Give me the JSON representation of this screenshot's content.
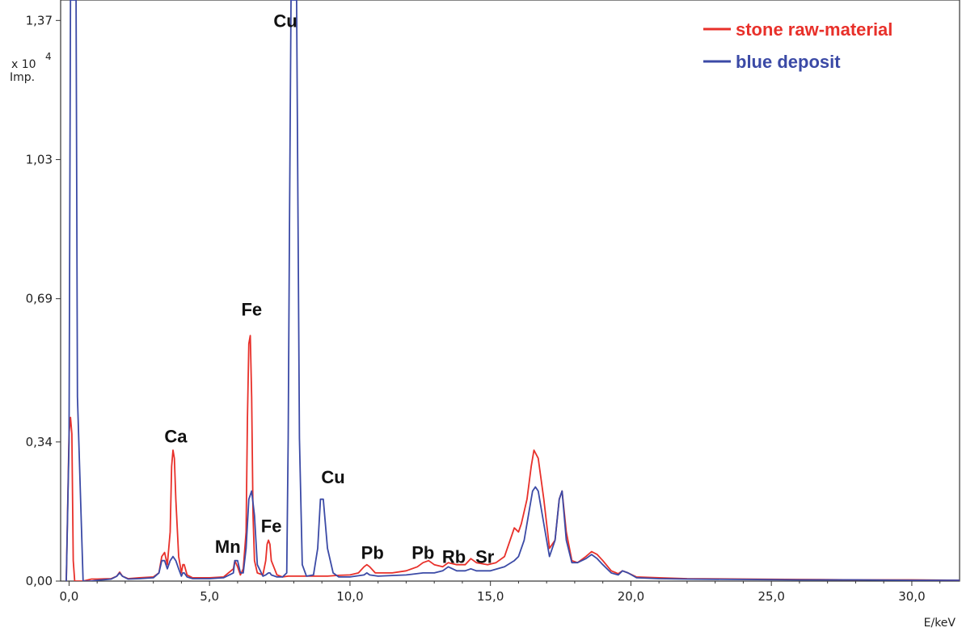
{
  "chart_data": {
    "type": "line",
    "title": "",
    "xlabel": "E/keV",
    "ylabel_multiplier": "x 10",
    "ylabel_exponent": "4",
    "ylabel_unit": "Imp.",
    "xlim": [
      -0.3,
      31.7
    ],
    "ylim": [
      0.0,
      1.42
    ],
    "x_ticks": [
      0,
      5,
      10,
      15,
      20,
      25,
      30
    ],
    "x_tick_labels": [
      "0,0",
      "5,0",
      "10,0",
      "15,0",
      "20,0",
      "25,0",
      "30,0"
    ],
    "y_ticks": [
      0.0,
      0.34,
      0.69,
      1.03,
      1.37
    ],
    "y_tick_labels": [
      "0,00",
      "0,34",
      "0,69",
      "1,03",
      "1,37"
    ],
    "grid": false,
    "legend_position": "top-right",
    "series": [
      {
        "name": "stone raw-material",
        "color": "#e8302a",
        "x": [
          -0.1,
          0.0,
          0.05,
          0.1,
          0.15,
          0.2,
          0.3,
          0.5,
          0.8,
          1.0,
          1.5,
          1.7,
          1.8,
          1.9,
          2.1,
          2.5,
          3.0,
          3.2,
          3.3,
          3.4,
          3.5,
          3.6,
          3.65,
          3.7,
          3.75,
          3.8,
          3.9,
          4.0,
          4.05,
          4.1,
          4.2,
          4.4,
          5.0,
          5.5,
          5.85,
          5.9,
          6.0,
          6.1,
          6.2,
          6.3,
          6.35,
          6.4,
          6.45,
          6.5,
          6.55,
          6.6,
          6.7,
          6.9,
          7.0,
          7.05,
          7.1,
          7.15,
          7.2,
          7.4,
          7.6,
          7.8,
          8.0,
          8.1,
          8.3,
          8.6,
          8.9,
          9.2,
          9.6,
          10.0,
          10.3,
          10.5,
          10.6,
          10.7,
          10.9,
          11.5,
          12.0,
          12.4,
          12.6,
          12.8,
          13.0,
          13.3,
          13.5,
          13.8,
          14.1,
          14.3,
          14.5,
          14.9,
          15.2,
          15.5,
          15.7,
          15.85,
          16.0,
          16.1,
          16.3,
          16.45,
          16.55,
          16.7,
          16.9,
          17.1,
          17.3,
          17.45,
          17.55,
          17.7,
          17.9,
          18.1,
          18.4,
          18.6,
          18.8,
          19.0,
          19.3,
          19.55,
          19.7,
          19.9,
          20.2,
          21.0,
          22.0,
          24.0,
          26.0,
          28.0,
          30.0,
          31.7
        ],
        "y": [
          0.0,
          0.36,
          0.4,
          0.36,
          0.05,
          0.0,
          0.0,
          0.0,
          0.005,
          0.005,
          0.006,
          0.012,
          0.022,
          0.012,
          0.006,
          0.008,
          0.01,
          0.02,
          0.06,
          0.07,
          0.04,
          0.12,
          0.28,
          0.32,
          0.3,
          0.2,
          0.06,
          0.02,
          0.04,
          0.04,
          0.015,
          0.008,
          0.008,
          0.01,
          0.03,
          0.05,
          0.035,
          0.015,
          0.03,
          0.12,
          0.4,
          0.58,
          0.6,
          0.45,
          0.16,
          0.05,
          0.02,
          0.015,
          0.05,
          0.09,
          0.1,
          0.09,
          0.05,
          0.015,
          0.01,
          0.012,
          0.012,
          0.012,
          0.012,
          0.012,
          0.012,
          0.012,
          0.014,
          0.015,
          0.02,
          0.035,
          0.04,
          0.035,
          0.02,
          0.02,
          0.025,
          0.035,
          0.045,
          0.05,
          0.04,
          0.035,
          0.045,
          0.04,
          0.04,
          0.055,
          0.045,
          0.04,
          0.045,
          0.06,
          0.1,
          0.13,
          0.12,
          0.14,
          0.2,
          0.28,
          0.32,
          0.3,
          0.2,
          0.08,
          0.1,
          0.2,
          0.22,
          0.12,
          0.05,
          0.045,
          0.06,
          0.072,
          0.065,
          0.05,
          0.025,
          0.018,
          0.025,
          0.02,
          0.01,
          0.008,
          0.006,
          0.005,
          0.004,
          0.003,
          0.003,
          0.002
        ]
      },
      {
        "name": "blue deposit",
        "color": "#3b4aa6",
        "x": [
          -0.1,
          0.0,
          0.05,
          0.1,
          0.15,
          0.2,
          0.25,
          0.3,
          0.5,
          0.8,
          1.0,
          1.5,
          1.7,
          1.8,
          1.9,
          2.1,
          2.5,
          3.0,
          3.2,
          3.3,
          3.4,
          3.5,
          3.6,
          3.7,
          3.8,
          3.9,
          4.0,
          4.05,
          4.1,
          4.2,
          4.4,
          5.0,
          5.5,
          5.85,
          5.9,
          6.0,
          6.1,
          6.2,
          6.3,
          6.4,
          6.5,
          6.6,
          6.7,
          6.9,
          7.0,
          7.1,
          7.15,
          7.2,
          7.4,
          7.6,
          7.75,
          7.8,
          7.85,
          7.9,
          8.0,
          8.05,
          8.1,
          8.15,
          8.2,
          8.3,
          8.45,
          8.7,
          8.85,
          8.95,
          9.05,
          9.2,
          9.4,
          9.6,
          10.0,
          10.5,
          10.6,
          10.7,
          11.0,
          12.0,
          12.6,
          12.8,
          13.0,
          13.3,
          13.5,
          13.8,
          14.1,
          14.3,
          14.5,
          15.0,
          15.5,
          15.85,
          16.0,
          16.2,
          16.4,
          16.5,
          16.6,
          16.7,
          16.9,
          17.1,
          17.3,
          17.45,
          17.55,
          17.7,
          17.9,
          18.1,
          18.4,
          18.6,
          18.8,
          19.0,
          19.3,
          19.55,
          19.7,
          19.9,
          20.2,
          21.0,
          22.0,
          24.0,
          26.0,
          28.0,
          30.0,
          31.7
        ],
        "y": [
          0.0,
          0.34,
          1.42,
          1.42,
          1.42,
          1.42,
          1.42,
          0.45,
          0.0,
          0.0,
          0.002,
          0.005,
          0.012,
          0.02,
          0.012,
          0.005,
          0.006,
          0.008,
          0.02,
          0.05,
          0.05,
          0.03,
          0.05,
          0.06,
          0.05,
          0.03,
          0.012,
          0.02,
          0.02,
          0.01,
          0.006,
          0.006,
          0.008,
          0.02,
          0.05,
          0.05,
          0.02,
          0.02,
          0.08,
          0.2,
          0.22,
          0.16,
          0.04,
          0.012,
          0.015,
          0.02,
          0.02,
          0.015,
          0.01,
          0.01,
          0.02,
          0.35,
          0.9,
          1.42,
          1.42,
          1.42,
          1.42,
          0.9,
          0.35,
          0.04,
          0.012,
          0.015,
          0.08,
          0.2,
          0.2,
          0.08,
          0.02,
          0.01,
          0.01,
          0.015,
          0.02,
          0.015,
          0.012,
          0.015,
          0.02,
          0.02,
          0.02,
          0.025,
          0.035,
          0.025,
          0.025,
          0.03,
          0.025,
          0.025,
          0.035,
          0.05,
          0.06,
          0.1,
          0.18,
          0.22,
          0.23,
          0.22,
          0.14,
          0.06,
          0.1,
          0.2,
          0.22,
          0.1,
          0.045,
          0.045,
          0.055,
          0.065,
          0.055,
          0.04,
          0.02,
          0.015,
          0.025,
          0.02,
          0.008,
          0.006,
          0.005,
          0.004,
          0.003,
          0.003,
          0.002,
          0.002
        ]
      }
    ],
    "annotations": [
      {
        "text": "Cu",
        "x": 7.7,
        "y": 1.37
      },
      {
        "text": "Fe",
        "x": 6.5,
        "y": 0.665
      },
      {
        "text": "Ca",
        "x": 3.8,
        "y": 0.355
      },
      {
        "text": "Cu",
        "x": 9.4,
        "y": 0.255
      },
      {
        "text": "Fe",
        "x": 7.2,
        "y": 0.135
      },
      {
        "text": "Mn",
        "x": 5.65,
        "y": 0.085
      },
      {
        "text": "Pb",
        "x": 10.8,
        "y": 0.07
      },
      {
        "text": "Pb",
        "x": 12.6,
        "y": 0.07
      },
      {
        "text": "Rb",
        "x": 13.7,
        "y": 0.06
      },
      {
        "text": "Sr",
        "x": 14.8,
        "y": 0.06
      }
    ]
  }
}
